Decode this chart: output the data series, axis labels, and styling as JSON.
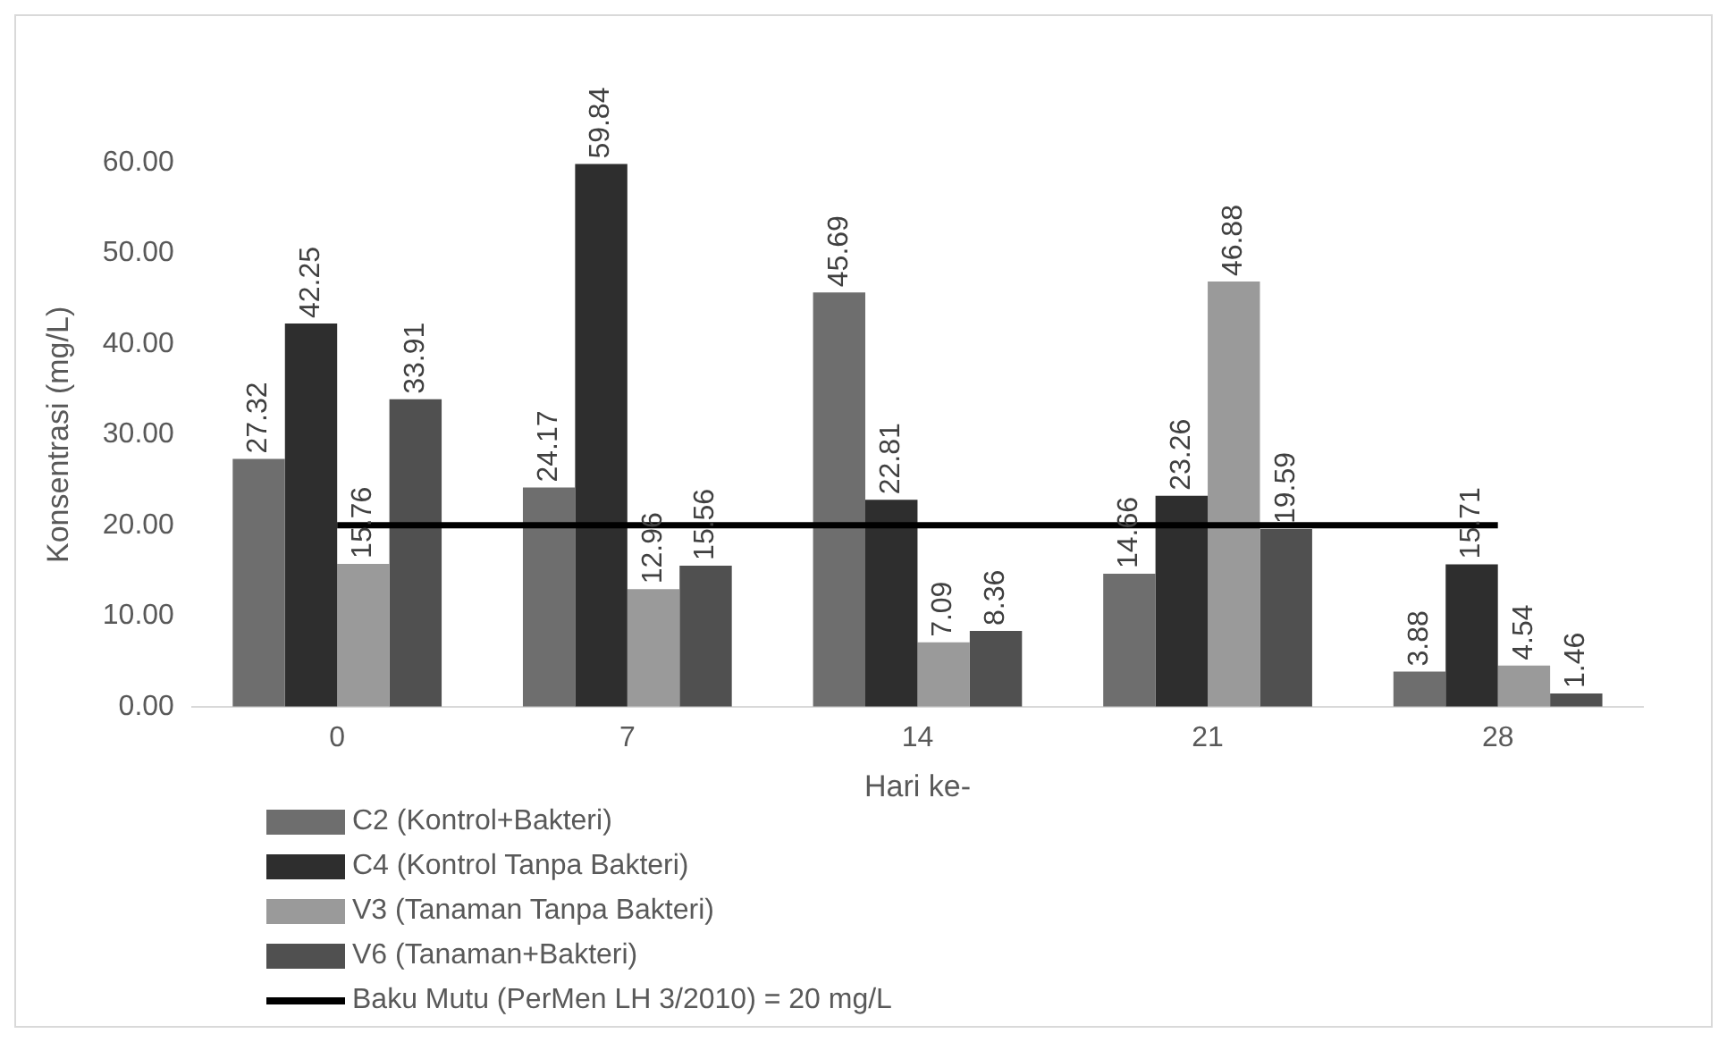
{
  "chart_data": {
    "type": "bar",
    "xlabel": "Hari ke-",
    "ylabel": "Konsentrasi (mg/L)",
    "categories": [
      "0",
      "7",
      "14",
      "21",
      "28"
    ],
    "series": [
      {
        "name": "C2 (Kontrol+Bakteri)",
        "color": "#6e6e6e",
        "values": [
          27.32,
          24.17,
          45.69,
          14.66,
          3.88
        ],
        "value_labels": [
          "27.32",
          "24.17",
          "45.69",
          "14.66",
          "3.88"
        ]
      },
      {
        "name": "C4 (Kontrol Tanpa Bakteri)",
        "color": "#2e2e2e",
        "values": [
          42.25,
          59.84,
          22.81,
          23.26,
          15.71
        ],
        "value_labels": [
          "42.25",
          "59.84",
          "22.81",
          "23.26",
          "15.71"
        ]
      },
      {
        "name": "V3 (Tanaman Tanpa Bakteri)",
        "color": "#9a9a9a",
        "values": [
          15.76,
          12.96,
          7.09,
          46.88,
          4.54
        ],
        "value_labels": [
          "15.76",
          "12.96",
          "7.09",
          "46.88",
          "4.54"
        ]
      },
      {
        "name": "V6 (Tanaman+Bakteri)",
        "color": "#505050",
        "values": [
          33.91,
          15.56,
          8.36,
          19.59,
          1.46
        ],
        "value_labels": [
          "33.91",
          "15.56",
          "8.36",
          "19.59",
          "1.46"
        ]
      },
      {
        "name": "Baku Mutu (PerMen LH 3/2010) = 20 mg/L",
        "type": "line",
        "color": "#000000",
        "values": [
          20,
          20,
          20,
          20,
          20
        ]
      }
    ],
    "ylim": [
      0,
      60
    ],
    "yticks": [
      {
        "value": 0,
        "label": "0.00"
      },
      {
        "value": 10,
        "label": "10.00"
      },
      {
        "value": 20,
        "label": "20.00"
      },
      {
        "value": 30,
        "label": "30.00"
      },
      {
        "value": 40,
        "label": "40.00"
      },
      {
        "value": 50,
        "label": "50.00"
      },
      {
        "value": 60,
        "label": "60.00"
      }
    ],
    "grid": false,
    "legend": "bottom",
    "marker": "none",
    "line_style": "solid"
  }
}
